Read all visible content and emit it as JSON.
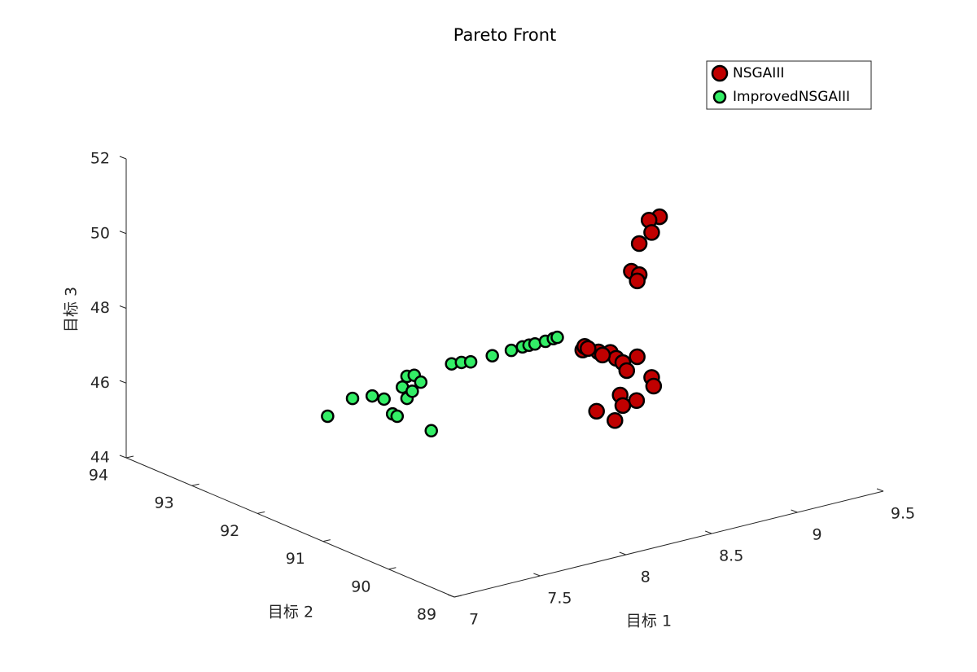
{
  "chart_data": {
    "type": "scatter3d",
    "title": "Pareto Front",
    "xlabel": "目标 1",
    "ylabel": "目标 2",
    "zlabel": "目标 3",
    "xlim": [
      7,
      9.5
    ],
    "xticks": [
      7,
      7.5,
      8,
      8.5,
      9,
      9.5
    ],
    "ylim": [
      89,
      94
    ],
    "yticks": [
      89,
      90,
      91,
      92,
      93,
      94
    ],
    "zlim": [
      44,
      52
    ],
    "zticks": [
      44,
      46,
      48,
      50,
      52
    ],
    "legend": "top-right",
    "series": [
      {
        "name": "NSGAIII",
        "color": "#c00000",
        "x": [
          8.8,
          8.8,
          8.8,
          8.8,
          8.8,
          8.8,
          8.8,
          8.8,
          8.8,
          8.8,
          8.8,
          8.8,
          8.8,
          8.8,
          8.8,
          8.8,
          8.8,
          8.8,
          8.8,
          8.8,
          8.8,
          8.8,
          8.8,
          8.8,
          8.8
        ],
        "y": [
          90.58,
          90.74,
          90.7,
          90.89,
          91.01,
          90.89,
          90.92,
          91.7,
          91.75,
          91.51,
          91.33,
          91.24,
          91.14,
          90.92,
          91.08,
          90.7,
          90.67,
          91.18,
          90.93,
          91.14,
          91.54,
          91.26,
          91.45,
          91.72,
          91.67
        ],
        "z": [
          50.96,
          50.75,
          50.45,
          50.01,
          49.18,
          49.18,
          48.99,
          46.6,
          46.52,
          46.65,
          46.77,
          46.68,
          46.64,
          46.96,
          46.47,
          46.57,
          46.36,
          45.74,
          45.78,
          45.49,
          45.04,
          45.0,
          46.61,
          46.64,
          46.62
        ]
      },
      {
        "name": "ImprovedNSGAIII",
        "color": "#33ee66",
        "x": [
          7.6,
          7.6,
          7.6,
          7.6,
          7.6,
          7.6,
          7.6,
          7.6,
          7.6,
          7.6,
          7.6,
          7.6,
          7.6,
          7.6,
          7.6,
          7.6,
          7.6,
          7.6,
          7.6,
          7.6,
          7.6,
          7.6,
          7.6,
          7.6
        ],
        "y": [
          92.5,
          92.12,
          91.82,
          91.64,
          91.51,
          91.44,
          91.29,
          91.36,
          91.21,
          91.29,
          91.18,
          91.08,
          90.92,
          90.61,
          90.46,
          90.32,
          89.99,
          89.7,
          89.53,
          89.43,
          89.34,
          89.18,
          89.06,
          89.0
        ],
        "z": [
          45.55,
          46.31,
          46.6,
          46.65,
          46.35,
          46.34,
          46.93,
          47.18,
          47.18,
          47.52,
          47.63,
          47.52,
          46.34,
          48.36,
          48.51,
          48.63,
          49.04,
          49.4,
          49.62,
          49.74,
          49.84,
          50.03,
          50.19,
          50.27
        ]
      }
    ]
  }
}
